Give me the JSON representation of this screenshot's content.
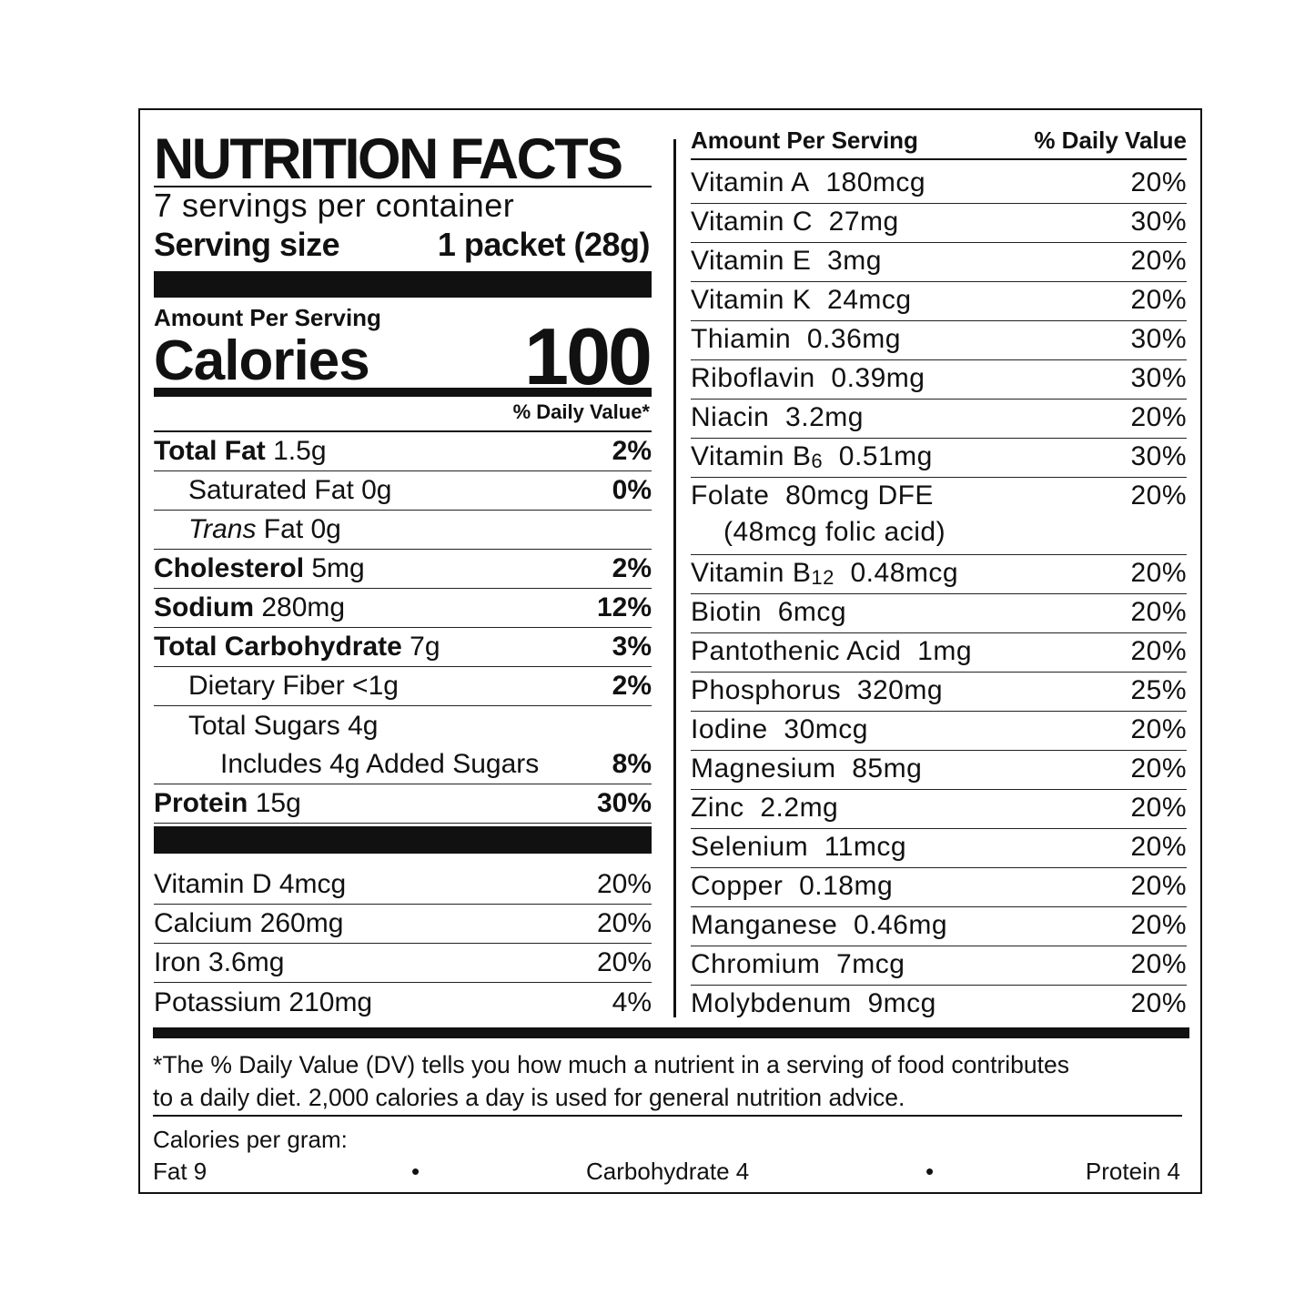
{
  "left": {
    "title": "NUTRITION FACTS",
    "servings": "7 servings per container",
    "serving_size_label": "Serving size",
    "serving_size_value": "1 packet (28g)",
    "amount_per_serving": "Amount Per Serving",
    "calories_label": "Calories",
    "calories_value": "100",
    "dv_header": "% Daily Value*",
    "nutrients": [
      {
        "bold": "Total Fat",
        "text": " 1.5g",
        "pct": "2%",
        "indent": 0
      },
      {
        "text": "Saturated Fat 0g",
        "pct": "0%",
        "indent": 1
      },
      {
        "italic": "Trans",
        "text": " Fat 0g",
        "pct": "",
        "indent": 1
      },
      {
        "bold": "Cholesterol",
        "text": " 5mg",
        "pct": "2%",
        "indent": 0
      },
      {
        "bold": "Sodium",
        "text": " 280mg",
        "pct": "12%",
        "indent": 0
      },
      {
        "bold": "Total Carbohydrate",
        "text": " 7g",
        "pct": "3%",
        "indent": 0
      },
      {
        "text": "Dietary Fiber <1g",
        "pct": "2%",
        "indent": 1
      },
      {
        "text": "Total Sugars 4g",
        "pct": "",
        "indent": 1
      },
      {
        "text": "Includes 4g Added Sugars",
        "pct": "8%",
        "indent": 2
      },
      {
        "bold": "Protein",
        "text": " 15g",
        "pct": "30%",
        "indent": 0
      }
    ],
    "minerals": [
      {
        "text": "Vitamin D 4mcg",
        "pct": "20%"
      },
      {
        "text": "Calcium 260mg",
        "pct": "20%"
      },
      {
        "text": "Iron 3.6mg",
        "pct": "20%"
      },
      {
        "text": "Potassium 210mg",
        "pct": "4%"
      }
    ]
  },
  "right": {
    "header_left": "Amount Per Serving",
    "header_right": "% Daily Value",
    "items": [
      {
        "name": "Vitamin A",
        "amount": "180mcg",
        "pct": "20%"
      },
      {
        "name": "Vitamin C",
        "amount": "27mg",
        "pct": "30%"
      },
      {
        "name": "Vitamin E",
        "amount": "3mg",
        "pct": "20%"
      },
      {
        "name": "Vitamin K",
        "amount": "24mcg",
        "pct": "20%"
      },
      {
        "name": "Thiamin",
        "amount": "0.36mg",
        "pct": "30%"
      },
      {
        "name": "Riboflavin",
        "amount": "0.39mg",
        "pct": "30%"
      },
      {
        "name": "Niacin",
        "amount": "3.2mg",
        "pct": "20%"
      },
      {
        "name": "Vitamin B",
        "sub": "6",
        "amount": "0.51mg",
        "pct": "30%"
      },
      {
        "name": "Folate",
        "amount": "80mcg DFE",
        "pct": "20%",
        "second_line": "(48mcg folic acid)"
      },
      {
        "name": "Vitamin B",
        "sub": "12",
        "amount": "0.48mcg",
        "pct": "20%"
      },
      {
        "name": "Biotin",
        "amount": "6mcg",
        "pct": "20%"
      },
      {
        "name": "Pantothenic Acid",
        "amount": "1mg",
        "pct": "20%"
      },
      {
        "name": "Phosphorus",
        "amount": "320mg",
        "pct": "25%"
      },
      {
        "name": "Iodine",
        "amount": "30mcg",
        "pct": "20%"
      },
      {
        "name": "Magnesium",
        "amount": "85mg",
        "pct": "20%"
      },
      {
        "name": "Zinc",
        "amount": "2.2mg",
        "pct": "20%"
      },
      {
        "name": "Selenium",
        "amount": "11mcg",
        "pct": "20%"
      },
      {
        "name": "Copper",
        "amount": "0.18mg",
        "pct": "20%"
      },
      {
        "name": "Manganese",
        "amount": "0.46mg",
        "pct": "20%"
      },
      {
        "name": "Chromium",
        "amount": "7mcg",
        "pct": "20%"
      },
      {
        "name": "Molybdenum",
        "amount": "9mcg",
        "pct": "20%"
      }
    ]
  },
  "footer": {
    "footnote_line1": "*The % Daily Value (DV) tells you how much a nutrient in a serving of food contributes",
    "footnote_line2": "to a daily diet. 2,000 calories a day is used for general nutrition advice.",
    "calories_per_gram": "Calories per gram:",
    "fat": "Fat 9",
    "carbohydrate": "Carbohydrate 4",
    "protein": "Protein 4",
    "bullet": "•"
  }
}
